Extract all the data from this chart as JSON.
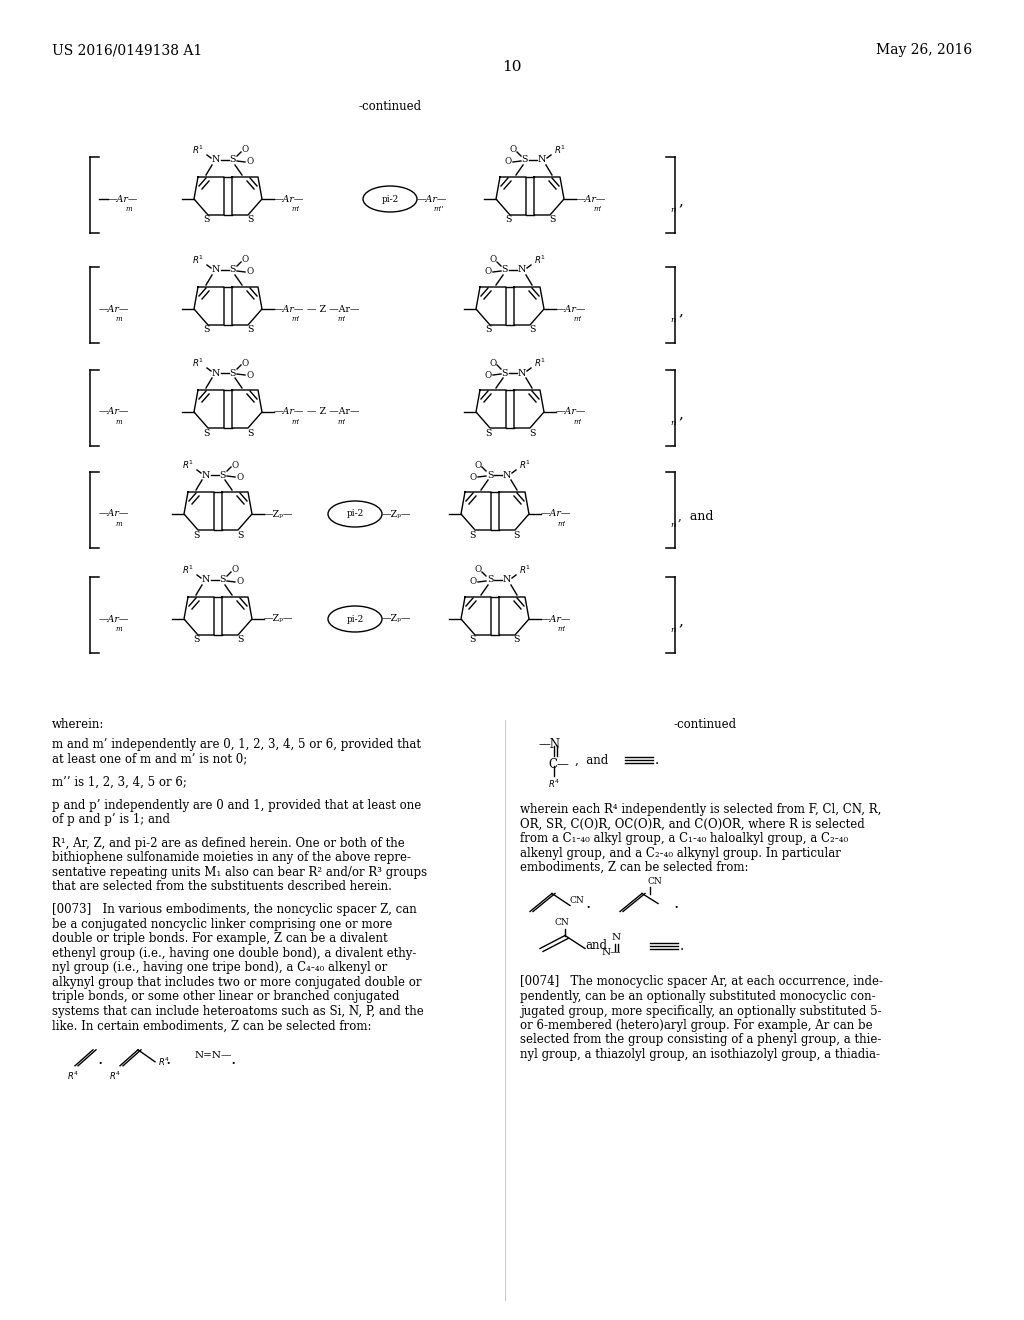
{
  "bg_color": "#ffffff",
  "header_left": "US 2016/0149138 A1",
  "header_right": "May 26, 2016",
  "page_number": "10",
  "continued_top": "-continued",
  "continued_right": "-continued",
  "wherein_text": "wherein:",
  "left_col_lines": [
    "m and m’ independently are 0, 1, 2, 3, 4, 5 or 6, provided that",
    "at least one of m and m’ is not 0;",
    "",
    "m’’ is 1, 2, 3, 4, 5 or 6;",
    "",
    "p and p’ independently are 0 and 1, provided that at least one",
    "of p and p’ is 1; and",
    "",
    "R¹, Ar, Z, and pi-2 are as defined herein. One or both of the",
    "bithiophene sulfonamide moieties in any of the above repre-",
    "sentative repeating units M₁ also can bear R² and/or R³ groups",
    "that are selected from the substituents described herein.",
    "",
    "[0073]   In various embodiments, the noncyclic spacer Z, can",
    "be a conjugated noncyclic linker comprising one or more",
    "double or triple bonds. For example, Z can be a divalent",
    "ethenyl group (i.e., having one double bond), a divalent ethy-",
    "nyl group (i.e., having one tripe bond), a C₄-₄₀ alkenyl or",
    "alkynyl group that includes two or more conjugated double or",
    "triple bonds, or some other linear or branched conjugated",
    "systems that can include heteroatoms such as Si, N, P, and the",
    "like. In certain embodiments, Z can be selected from:"
  ],
  "right_col_lines_top": [
    "wherein each R⁴ independently is selected from F, Cl, CN, R,",
    "OR, SR, C(O)R, OC(O)R, and C(O)OR, where R is selected",
    "from a C₁-₄₀ alkyl group, a C₁-₄₀ haloalkyl group, a C₂-₄₀",
    "alkenyl group, and a C₂-₄₀ alkynyl group. In particular",
    "embodiments, Z can be selected from:"
  ],
  "right_col_lines_bottom": [
    "[0074]   The monocyclic spacer Ar, at each occurrence, inde-",
    "pendently, can be an optionally substituted monocyclic con-",
    "jugated group, more specifically, an optionally substituted 5-",
    "or 6-membered (hetero)aryl group. For example, Ar can be",
    "selected from the group consisting of a phenyl group, a thie-",
    "nyl group, a thiazolyl group, an isothiazolyl group, a thiadia-"
  ]
}
